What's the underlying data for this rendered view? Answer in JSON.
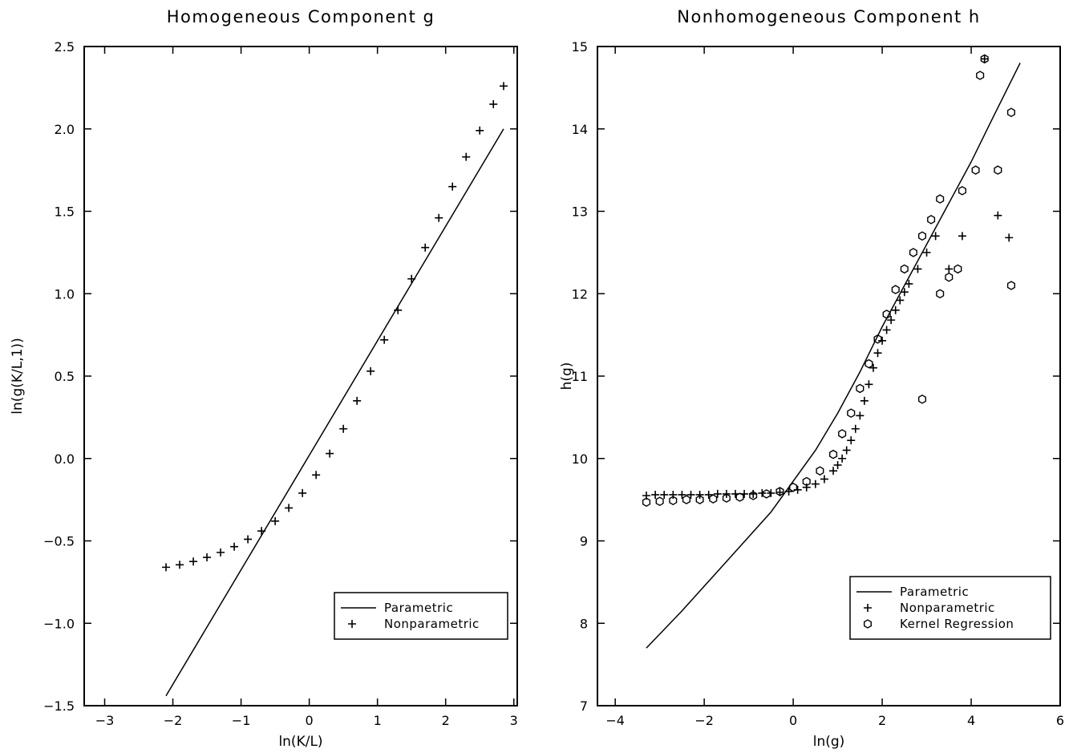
{
  "chart_data": [
    {
      "type": "line",
      "title": "Homogeneous Component g",
      "xlabel": "ln(K/L)",
      "ylabel": "ln(g(K/L,1))",
      "xlim": [
        -3.3,
        3.05
      ],
      "ylim": [
        -1.5,
        2.5
      ],
      "xticks": [
        -3,
        -2,
        -1,
        0,
        1,
        2,
        3
      ],
      "xtick_labels": [
        "−3",
        "−2",
        "−1",
        "0",
        "1",
        "2",
        "3"
      ],
      "yticks": [
        -1.5,
        -1.0,
        -0.5,
        0.0,
        0.5,
        1.0,
        1.5,
        2.0,
        2.5
      ],
      "ytick_labels": [
        "−1.5",
        "−1.0",
        "−0.5",
        "0.0",
        "0.5",
        "1.0",
        "1.5",
        "2.0",
        "2.5"
      ],
      "grid": false,
      "legend_position": "bottom-right",
      "series": [
        {
          "name": "Parametric",
          "style": "line",
          "x": [
            -2.1,
            2.85
          ],
          "y": [
            -1.44,
            2.0
          ]
        },
        {
          "name": "Nonparametric",
          "style": "plus",
          "x": [
            -2.1,
            -1.9,
            -1.7,
            -1.5,
            -1.3,
            -1.1,
            -0.9,
            -0.7,
            -0.5,
            -0.3,
            -0.1,
            0.1,
            0.3,
            0.5,
            0.7,
            0.9,
            1.1,
            1.3,
            1.5,
            1.7,
            1.9,
            2.1,
            2.3,
            2.5,
            2.7,
            2.85
          ],
          "y": [
            -0.66,
            -0.645,
            -0.625,
            -0.6,
            -0.57,
            -0.535,
            -0.49,
            -0.44,
            -0.38,
            -0.3,
            -0.21,
            -0.1,
            0.03,
            0.18,
            0.35,
            0.53,
            0.72,
            0.9,
            1.09,
            1.28,
            1.46,
            1.65,
            1.83,
            1.99,
            2.15,
            2.26
          ]
        }
      ]
    },
    {
      "type": "scatter",
      "title": "Nonhomogeneous Component h",
      "xlabel": "ln(g)",
      "ylabel": "h(g)",
      "xlim": [
        -4.4,
        6.0
      ],
      "ylim": [
        7,
        15
      ],
      "xticks": [
        -4,
        -2,
        0,
        2,
        4,
        6
      ],
      "xtick_labels": [
        "−4",
        "−2",
        "0",
        "2",
        "4",
        "6"
      ],
      "yticks": [
        7,
        8,
        9,
        10,
        11,
        12,
        13,
        14,
        15
      ],
      "ytick_labels": [
        "7",
        "8",
        "9",
        "10",
        "11",
        "12",
        "13",
        "14",
        "15"
      ],
      "grid": false,
      "legend_position": "bottom-right",
      "series": [
        {
          "name": "Parametric",
          "style": "line",
          "x": [
            -3.3,
            -2.5,
            -1.5,
            -0.5,
            0.5,
            1.0,
            1.5,
            2.0,
            2.5,
            3.0,
            3.5,
            4.0,
            4.5,
            5.1
          ],
          "y": [
            7.7,
            8.15,
            8.75,
            9.35,
            10.1,
            10.55,
            11.05,
            11.6,
            12.1,
            12.6,
            13.1,
            13.6,
            14.15,
            14.8
          ]
        },
        {
          "name": "Nonparametric",
          "style": "plus",
          "x": [
            -3.3,
            -3.1,
            -2.9,
            -2.7,
            -2.5,
            -2.3,
            -2.1,
            -1.9,
            -1.7,
            -1.5,
            -1.3,
            -1.1,
            -0.9,
            -0.7,
            -0.5,
            -0.3,
            -0.1,
            0.1,
            0.3,
            0.5,
            0.7,
            0.9,
            1.0,
            1.1,
            1.2,
            1.3,
            1.4,
            1.5,
            1.6,
            1.7,
            1.8,
            1.9,
            2.0,
            2.1,
            2.2,
            2.3,
            2.4,
            2.5,
            2.6,
            2.8,
            3.0,
            3.2,
            3.5,
            3.8,
            4.3,
            4.6,
            4.85
          ],
          "y": [
            9.55,
            9.56,
            9.56,
            9.56,
            9.56,
            9.56,
            9.56,
            9.56,
            9.57,
            9.57,
            9.57,
            9.57,
            9.57,
            9.58,
            9.58,
            9.59,
            9.6,
            9.62,
            9.65,
            9.69,
            9.75,
            9.85,
            9.92,
            10.0,
            10.1,
            10.22,
            10.36,
            10.52,
            10.7,
            10.9,
            11.1,
            11.28,
            11.43,
            11.56,
            11.68,
            11.8,
            11.92,
            12.02,
            12.12,
            12.3,
            12.5,
            12.7,
            12.3,
            12.7,
            14.85,
            12.95,
            12.68
          ]
        },
        {
          "name": "Kernel Regression",
          "style": "hexagon",
          "x": [
            -3.3,
            -3.0,
            -2.7,
            -2.4,
            -2.1,
            -1.8,
            -1.5,
            -1.2,
            -0.9,
            -0.6,
            -0.3,
            0.0,
            0.3,
            0.6,
            0.9,
            1.1,
            1.3,
            1.5,
            1.7,
            1.9,
            2.1,
            2.3,
            2.5,
            2.7,
            2.9,
            3.1,
            3.3,
            3.5,
            3.8,
            4.1,
            4.2,
            4.3,
            4.6,
            4.9,
            2.9,
            3.3,
            3.7,
            4.9
          ],
          "y": [
            9.47,
            9.48,
            9.49,
            9.5,
            9.5,
            9.51,
            9.52,
            9.53,
            9.55,
            9.57,
            9.6,
            9.65,
            9.72,
            9.85,
            10.05,
            10.3,
            10.55,
            10.85,
            11.15,
            11.45,
            11.75,
            12.05,
            12.3,
            12.5,
            12.7,
            12.9,
            13.15,
            12.2,
            13.25,
            13.5,
            14.65,
            14.85,
            13.5,
            14.2,
            10.72,
            12.0,
            12.3,
            12.1
          ]
        }
      ]
    }
  ]
}
